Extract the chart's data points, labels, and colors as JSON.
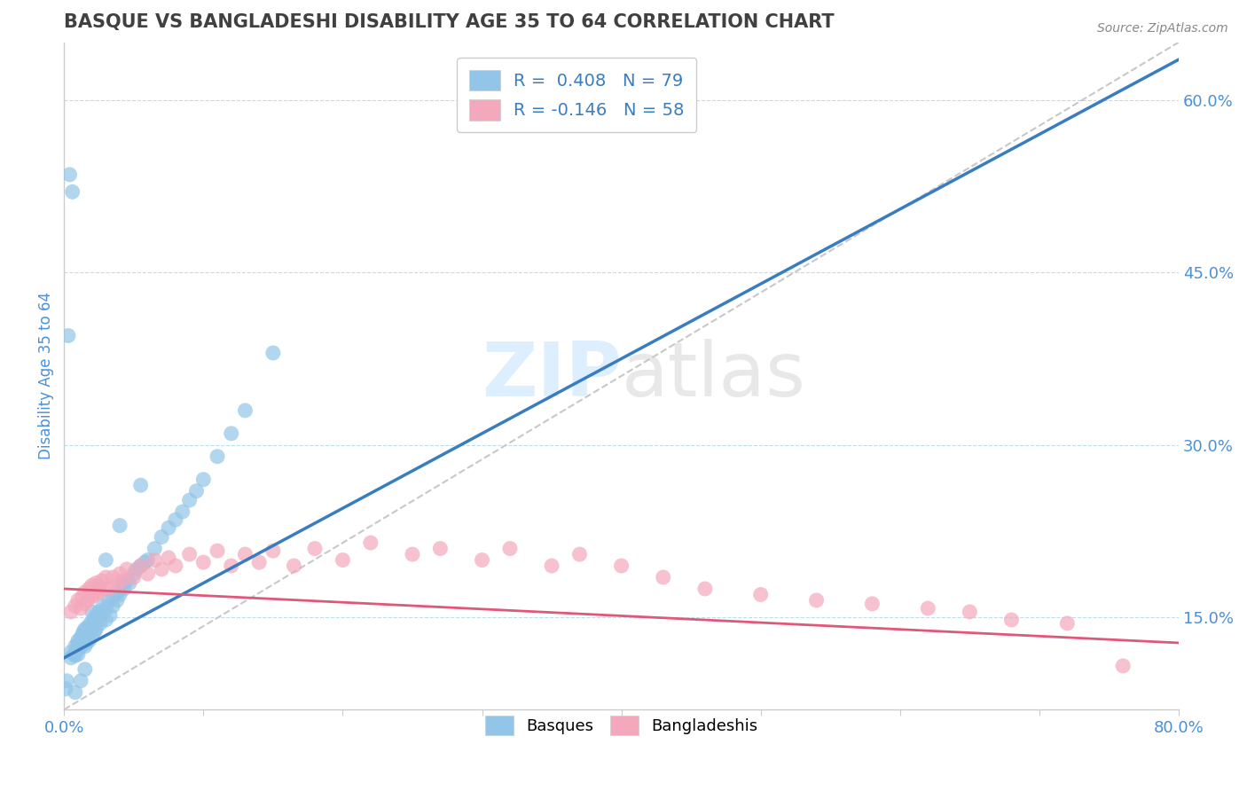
{
  "title": "BASQUE VS BANGLADESHI DISABILITY AGE 35 TO 64 CORRELATION CHART",
  "source_text": "Source: ZipAtlas.com",
  "ylabel": "Disability Age 35 to 64",
  "xlim": [
    0.0,
    0.8
  ],
  "ylim": [
    0.07,
    0.65
  ],
  "right_yticks": [
    0.15,
    0.3,
    0.45,
    0.6
  ],
  "right_yticklabels": [
    "15.0%",
    "30.0%",
    "45.0%",
    "60.0%"
  ],
  "xtick_positions": [
    0.0,
    0.1,
    0.2,
    0.3,
    0.4,
    0.5,
    0.6,
    0.7,
    0.8
  ],
  "xticklabels": [
    "0.0%",
    "",
    "",
    "",
    "",
    "",
    "",
    "",
    "80.0%"
  ],
  "blue_color": "#92c5e8",
  "pink_color": "#f4a8bc",
  "blue_line_color": "#3a7dbf",
  "pink_line_color": "#e05878",
  "gray_dash_color": "#c8c8c8",
  "watermark_color": "#ddeeff",
  "n_blue": 79,
  "n_pink": 58,
  "blue_trend": [
    0.0,
    0.115,
    0.8,
    0.635
  ],
  "pink_trend": [
    0.0,
    0.175,
    0.8,
    0.128
  ],
  "gray_diag": [
    0.0,
    0.07,
    0.8,
    0.65
  ],
  "blue_x": [
    0.005,
    0.005,
    0.007,
    0.008,
    0.008,
    0.01,
    0.01,
    0.01,
    0.01,
    0.012,
    0.012,
    0.013,
    0.013,
    0.014,
    0.014,
    0.015,
    0.015,
    0.015,
    0.016,
    0.016,
    0.017,
    0.018,
    0.018,
    0.019,
    0.02,
    0.02,
    0.021,
    0.022,
    0.022,
    0.023,
    0.023,
    0.025,
    0.025,
    0.026,
    0.027,
    0.028,
    0.03,
    0.03,
    0.032,
    0.033,
    0.035,
    0.035,
    0.038,
    0.038,
    0.04,
    0.042,
    0.043,
    0.045,
    0.047,
    0.05,
    0.052,
    0.055,
    0.058,
    0.06,
    0.065,
    0.07,
    0.075,
    0.08,
    0.085,
    0.09,
    0.095,
    0.1,
    0.11,
    0.12,
    0.13,
    0.15,
    0.055,
    0.04,
    0.03,
    0.025,
    0.02,
    0.015,
    0.012,
    0.008,
    0.006,
    0.004,
    0.003,
    0.002,
    0.001
  ],
  "blue_y": [
    0.12,
    0.115,
    0.118,
    0.125,
    0.117,
    0.122,
    0.13,
    0.118,
    0.128,
    0.125,
    0.132,
    0.128,
    0.135,
    0.13,
    0.138,
    0.125,
    0.133,
    0.14,
    0.128,
    0.135,
    0.142,
    0.13,
    0.138,
    0.145,
    0.135,
    0.142,
    0.148,
    0.138,
    0.145,
    0.152,
    0.14,
    0.148,
    0.155,
    0.145,
    0.152,
    0.16,
    0.148,
    0.158,
    0.165,
    0.152,
    0.16,
    0.168,
    0.165,
    0.172,
    0.17,
    0.178,
    0.175,
    0.182,
    0.18,
    0.188,
    0.192,
    0.195,
    0.198,
    0.2,
    0.21,
    0.22,
    0.228,
    0.235,
    0.242,
    0.252,
    0.26,
    0.27,
    0.29,
    0.31,
    0.33,
    0.38,
    0.265,
    0.23,
    0.2,
    0.175,
    0.155,
    0.105,
    0.095,
    0.085,
    0.52,
    0.535,
    0.395,
    0.095,
    0.088
  ],
  "pink_x": [
    0.005,
    0.008,
    0.01,
    0.012,
    0.013,
    0.015,
    0.015,
    0.017,
    0.018,
    0.02,
    0.02,
    0.022,
    0.023,
    0.025,
    0.027,
    0.028,
    0.03,
    0.032,
    0.035,
    0.038,
    0.04,
    0.042,
    0.045,
    0.05,
    0.055,
    0.06,
    0.065,
    0.07,
    0.075,
    0.08,
    0.09,
    0.1,
    0.11,
    0.12,
    0.13,
    0.14,
    0.15,
    0.165,
    0.18,
    0.2,
    0.22,
    0.25,
    0.27,
    0.3,
    0.32,
    0.35,
    0.37,
    0.4,
    0.43,
    0.46,
    0.5,
    0.54,
    0.58,
    0.62,
    0.65,
    0.68,
    0.72,
    0.76
  ],
  "pink_y": [
    0.155,
    0.16,
    0.165,
    0.158,
    0.168,
    0.162,
    0.172,
    0.165,
    0.175,
    0.168,
    0.178,
    0.17,
    0.18,
    0.172,
    0.182,
    0.175,
    0.185,
    0.175,
    0.185,
    0.178,
    0.188,
    0.182,
    0.192,
    0.185,
    0.195,
    0.188,
    0.2,
    0.192,
    0.202,
    0.195,
    0.205,
    0.198,
    0.208,
    0.195,
    0.205,
    0.198,
    0.208,
    0.195,
    0.21,
    0.2,
    0.215,
    0.205,
    0.21,
    0.2,
    0.21,
    0.195,
    0.205,
    0.195,
    0.185,
    0.175,
    0.17,
    0.165,
    0.162,
    0.158,
    0.155,
    0.148,
    0.145,
    0.108
  ]
}
